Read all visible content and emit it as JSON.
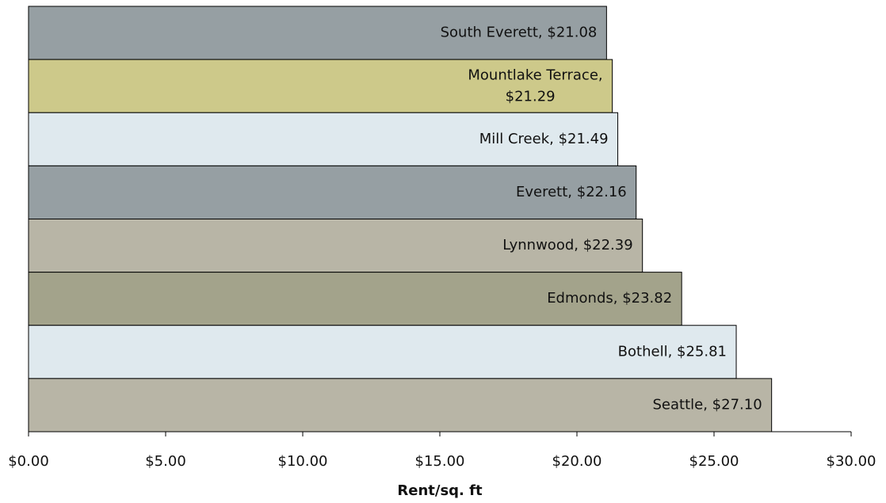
{
  "chart_data": {
    "type": "barh",
    "x_label": "Rent/sq. ft",
    "values": [
      21.08,
      21.29,
      21.49,
      22.16,
      22.39,
      23.82,
      25.81,
      27.1
    ],
    "value_labels": [
      "South Everett, $21.08",
      "Mountlake Terrace, $21.29",
      "Mill Creek, $21.49",
      "Everett, $22.16",
      "Lynnwood, $22.39",
      "Edmonds, $23.82",
      "Bothell, $25.81",
      "Seattle, $27.10"
    ],
    "colors": [
      "#969fa3",
      "#cdc98a",
      "#dfe9ee",
      "#969fa3",
      "#b8b5a6",
      "#a3a38b",
      "#dfe9ee",
      "#b8b5a6"
    ],
    "xlim": [
      0,
      30
    ],
    "xticks": [
      {
        "value": 0,
        "label": "$0.00"
      },
      {
        "value": 5,
        "label": "$5.00"
      },
      {
        "value": 10,
        "label": "$10.00"
      },
      {
        "value": 15,
        "label": "$15.00"
      },
      {
        "value": 20,
        "label": "$20.00"
      },
      {
        "value": 25,
        "label": "$25.00"
      },
      {
        "value": 30,
        "label": "$30.00"
      }
    ]
  }
}
